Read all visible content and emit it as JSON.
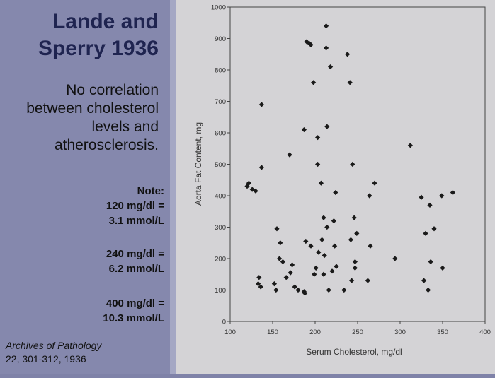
{
  "slide": {
    "title_line1": "Lande and",
    "title_line2": "Sperry 1936",
    "subtitle_lines": [
      "No correlation",
      "between cholesterol",
      "levels and",
      "atherosclerosis."
    ],
    "note_heading": "Note:",
    "conversions": [
      {
        "mgdl": "120 mg/dl =",
        "mmol": "3.1 mmol/L"
      },
      {
        "mgdl": "240 mg/dl =",
        "mmol": "6.2 mmol/L"
      },
      {
        "mgdl": "400 mg/dl =",
        "mmol": "10.3 mmol/L"
      }
    ],
    "citation_journal": "Archives of Pathology",
    "citation_ref": "22, 301-312, 1936"
  },
  "colors": {
    "left_bg": "#8588ad",
    "title": "#1f2450",
    "chart_bg": "#d4d3d6",
    "marker": "#1a1a1a"
  },
  "chart_data": {
    "type": "scatter",
    "xlabel": "Serum Cholesterol, mg/dl",
    "ylabel": "Aorta Fat Content, mg",
    "xlim": [
      100,
      400
    ],
    "ylim": [
      0,
      1000
    ],
    "xticks": [
      "100",
      "150",
      "200",
      "250",
      "300",
      "350",
      "400"
    ],
    "yticks": [
      "0",
      "100",
      "200",
      "300",
      "400",
      "500",
      "600",
      "700",
      "800",
      "900",
      "1000"
    ],
    "grid": false,
    "marker": "diamond",
    "points": [
      [
        120,
        430
      ],
      [
        122,
        440
      ],
      [
        126,
        420
      ],
      [
        130,
        415
      ],
      [
        133,
        120
      ],
      [
        134,
        140
      ],
      [
        136,
        110
      ],
      [
        137,
        690
      ],
      [
        137,
        490
      ],
      [
        152,
        120
      ],
      [
        154,
        100
      ],
      [
        155,
        295
      ],
      [
        158,
        200
      ],
      [
        159,
        250
      ],
      [
        162,
        190
      ],
      [
        166,
        140
      ],
      [
        170,
        530
      ],
      [
        171,
        155
      ],
      [
        173,
        180
      ],
      [
        176,
        110
      ],
      [
        180,
        100
      ],
      [
        187,
        610
      ],
      [
        187,
        95
      ],
      [
        188,
        90
      ],
      [
        189,
        255
      ],
      [
        190,
        890
      ],
      [
        193,
        885
      ],
      [
        195,
        880
      ],
      [
        195,
        240
      ],
      [
        198,
        760
      ],
      [
        199,
        150
      ],
      [
        201,
        170
      ],
      [
        203,
        500
      ],
      [
        203,
        585
      ],
      [
        204,
        220
      ],
      [
        207,
        440
      ],
      [
        208,
        260
      ],
      [
        210,
        330
      ],
      [
        210,
        150
      ],
      [
        211,
        210
      ],
      [
        213,
        940
      ],
      [
        213,
        870
      ],
      [
        214,
        620
      ],
      [
        214,
        300
      ],
      [
        216,
        100
      ],
      [
        218,
        810
      ],
      [
        220,
        160
      ],
      [
        222,
        320
      ],
      [
        223,
        240
      ],
      [
        224,
        410
      ],
      [
        225,
        175
      ],
      [
        234,
        100
      ],
      [
        238,
        850
      ],
      [
        241,
        760
      ],
      [
        242,
        260
      ],
      [
        243,
        130
      ],
      [
        244,
        500
      ],
      [
        246,
        330
      ],
      [
        247,
        190
      ],
      [
        247,
        170
      ],
      [
        249,
        280
      ],
      [
        262,
        130
      ],
      [
        264,
        400
      ],
      [
        265,
        240
      ],
      [
        270,
        440
      ],
      [
        294,
        200
      ],
      [
        312,
        560
      ],
      [
        325,
        395
      ],
      [
        328,
        130
      ],
      [
        330,
        280
      ],
      [
        333,
        100
      ],
      [
        335,
        370
      ],
      [
        336,
        190
      ],
      [
        340,
        295
      ],
      [
        349,
        400
      ],
      [
        350,
        170
      ],
      [
        362,
        410
      ]
    ]
  }
}
